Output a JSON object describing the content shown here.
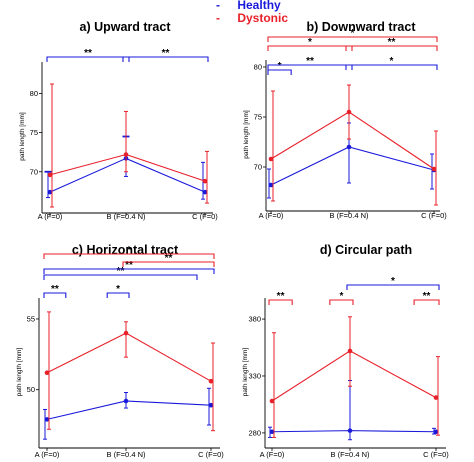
{
  "legend": [
    {
      "dash": "-",
      "name": "Healthy",
      "color": "#1a1adb"
    },
    {
      "dash": "-",
      "name": "Dystonic",
      "color": "#e8202a"
    }
  ],
  "chart_data": [
    {
      "type": "line",
      "title": "a) Upward tract",
      "ylabel": "path length [mm]",
      "categories": [
        "A (F=0)",
        "B (F=0.4 N)",
        "C (F=0)"
      ],
      "ylim": [
        65.5,
        83.5
      ],
      "yticks": [
        70,
        75,
        80
      ],
      "series": [
        {
          "name": "Healthy",
          "color": "#1a1adb",
          "values": [
            67.4,
            71.7,
            67.4
          ],
          "err_low": [
            66.7,
            69.4,
            66.5
          ],
          "err_high": [
            70.0,
            74.5,
            71.2
          ],
          "err_caps": [
            "T",
            "T",
            "|"
          ]
        },
        {
          "name": "Dystonic",
          "color": "#e8202a",
          "values": [
            69.6,
            72.2,
            68.8
          ],
          "err_low": [
            65.5,
            70.0,
            66.0
          ],
          "err_high": [
            81.2,
            77.7,
            72.6
          ]
        }
      ],
      "annotations": [
        {
          "from": 0,
          "to": 1,
          "label": "**",
          "color": "#1a1adb",
          "level": 0
        },
        {
          "from": 1,
          "to": 2,
          "label": "**",
          "color": "#1a1adb",
          "level": 0
        }
      ]
    },
    {
      "type": "line",
      "title": "b) Downward tract",
      "ylabel": "path length [mm]",
      "categories": [
        "A (F=0)",
        "B (F=0.4 N)",
        "C (F=0)"
      ],
      "ylim": [
        66.2,
        80.3
      ],
      "yticks": [
        70,
        75,
        80
      ],
      "series": [
        {
          "name": "Healthy",
          "color": "#1a1adb",
          "values": [
            68.2,
            72.0,
            69.7
          ],
          "err_low": [
            66.9,
            68.4,
            67.8
          ],
          "err_high": [
            69.8,
            74.4,
            71.3
          ]
        },
        {
          "name": "Dystonic",
          "color": "#e8202a",
          "values": [
            70.8,
            75.5,
            69.8
          ],
          "err_low": [
            66.6,
            72.8,
            66.2
          ],
          "err_high": [
            77.6,
            78.2,
            73.6
          ]
        }
      ],
      "annotations": [
        {
          "from": 0,
          "to": 0.22,
          "label": "*",
          "color": "#1a1adb",
          "level": 0
        },
        {
          "from": 0,
          "to": 1,
          "label": "**",
          "color": "#1a1adb",
          "level": 1
        },
        {
          "from": 1,
          "to": 2,
          "label": "*",
          "color": "#1a1adb",
          "level": 1
        },
        {
          "from": 0,
          "to": 1,
          "label": "*",
          "color": "#e8202a",
          "level": 2
        },
        {
          "from": 1,
          "to": 2,
          "label": "**",
          "color": "#e8202a",
          "level": 2
        },
        {
          "from": 0,
          "to": 2,
          "label": "*",
          "color": "#e8202a",
          "level": 3
        }
      ]
    },
    {
      "type": "line",
      "title": "c) Horizontal tract",
      "ylabel": "path length [mm]",
      "categories": [
        "A (F=0)",
        "B (F=0.4 N)",
        "C (F=0)"
      ],
      "ylim": [
        46.3,
        56.2
      ],
      "yticks": [
        50,
        55
      ],
      "series": [
        {
          "name": "Healthy",
          "color": "#1a1adb",
          "values": [
            47.9,
            49.2,
            48.9
          ],
          "err_low": [
            46.5,
            48.7,
            47.5
          ],
          "err_high": [
            48.6,
            49.8,
            50.1
          ]
        },
        {
          "name": "Dystonic",
          "color": "#e8202a",
          "values": [
            51.2,
            54.0,
            50.6
          ],
          "err_low": [
            47.2,
            52.3,
            47.1
          ],
          "err_high": [
            55.5,
            54.8,
            53.3
          ]
        }
      ],
      "annotations": [
        {
          "from": 0,
          "to": 0.2,
          "label": "**",
          "color": "#1a1adb",
          "level": 0
        },
        {
          "from": 0.8,
          "to": 1,
          "label": "*",
          "color": "#1a1adb",
          "level": 0
        },
        {
          "from": 0,
          "to": 1.8,
          "label": "**",
          "color": "#1a1adb",
          "level": 1
        },
        {
          "from": 0,
          "to": 2,
          "label": "**",
          "color": "#1a1adb",
          "level": 2
        },
        {
          "from": 1,
          "to": 2,
          "label": "**",
          "color": "#e8202a",
          "level": 3
        },
        {
          "from": 0,
          "to": 2,
          "label": "*",
          "color": "#e8202a",
          "level": 4
        }
      ]
    },
    {
      "type": "line",
      "title": "d) Circular path",
      "ylabel": "path length [mm]",
      "categories": [
        "A (F=0)",
        "B (F=0.4 N)",
        "C (F=0)"
      ],
      "ylim": [
        272,
        395
      ],
      "yticks": [
        280,
        330,
        380
      ],
      "series": [
        {
          "name": "Healthy",
          "color": "#1a1adb",
          "values": [
            281,
            282,
            281
          ],
          "err_low": [
            276,
            274,
            279
          ],
          "err_high": [
            285,
            326,
            284
          ]
        },
        {
          "name": "Dystonic",
          "color": "#e8202a",
          "values": [
            308,
            352,
            311
          ],
          "err_low": [
            276,
            321,
            278
          ],
          "err_high": [
            368,
            382,
            347
          ]
        }
      ],
      "annotations": [
        {
          "from": 0,
          "to": 0.22,
          "label": "**",
          "color": "#e8202a",
          "level": 0
        },
        {
          "from": 0.78,
          "to": 1,
          "label": "*",
          "color": "#e8202a",
          "level": 0
        },
        {
          "from": 1.78,
          "to": 2,
          "label": "**",
          "color": "#e8202a",
          "level": 0
        },
        {
          "from": 1,
          "to": 2,
          "label": "*",
          "color": "#1a1adb",
          "level": 1
        }
      ]
    }
  ]
}
